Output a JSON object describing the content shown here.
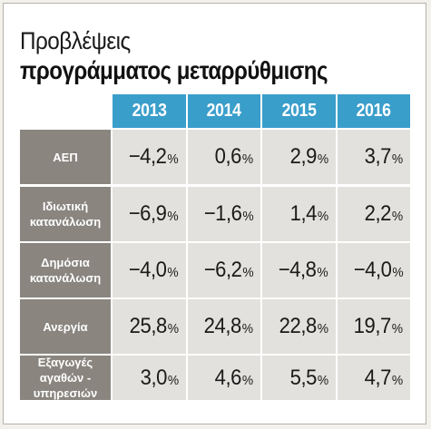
{
  "title_line1": "Προβλέψεις",
  "title_line2": "προγράμματος μεταρρύθμισης",
  "colors": {
    "header": "#3a9ecb",
    "row_label": "#8a857f",
    "cell": "#e3e1dd"
  },
  "chart_data": {
    "type": "table",
    "columns": [
      "2013",
      "2014",
      "2015",
      "2016"
    ],
    "rows": [
      {
        "label": [
          "ΑΕΠ"
        ],
        "values": [
          "-4,2",
          "0,6",
          "2,9",
          "3,7"
        ]
      },
      {
        "label": [
          "Ιδιωτική",
          "κατανάλωση"
        ],
        "values": [
          "-6,9",
          "-1,6",
          "1,4",
          "2,2"
        ]
      },
      {
        "label": [
          "Δημόσια",
          "κατανάλωση"
        ],
        "values": [
          "-4,0",
          "-6,2",
          "-4,8",
          "-4,0"
        ]
      },
      {
        "label": [
          "Ανεργία"
        ],
        "values": [
          "25,8",
          "24,8",
          "22,8",
          "19,7"
        ]
      },
      {
        "label": [
          "Εξαγωγές",
          "αγαθών -",
          "υπηρεσιών"
        ],
        "values": [
          "3,0",
          "4,6",
          "5,5",
          "4,7"
        ]
      }
    ],
    "unit": "%"
  }
}
